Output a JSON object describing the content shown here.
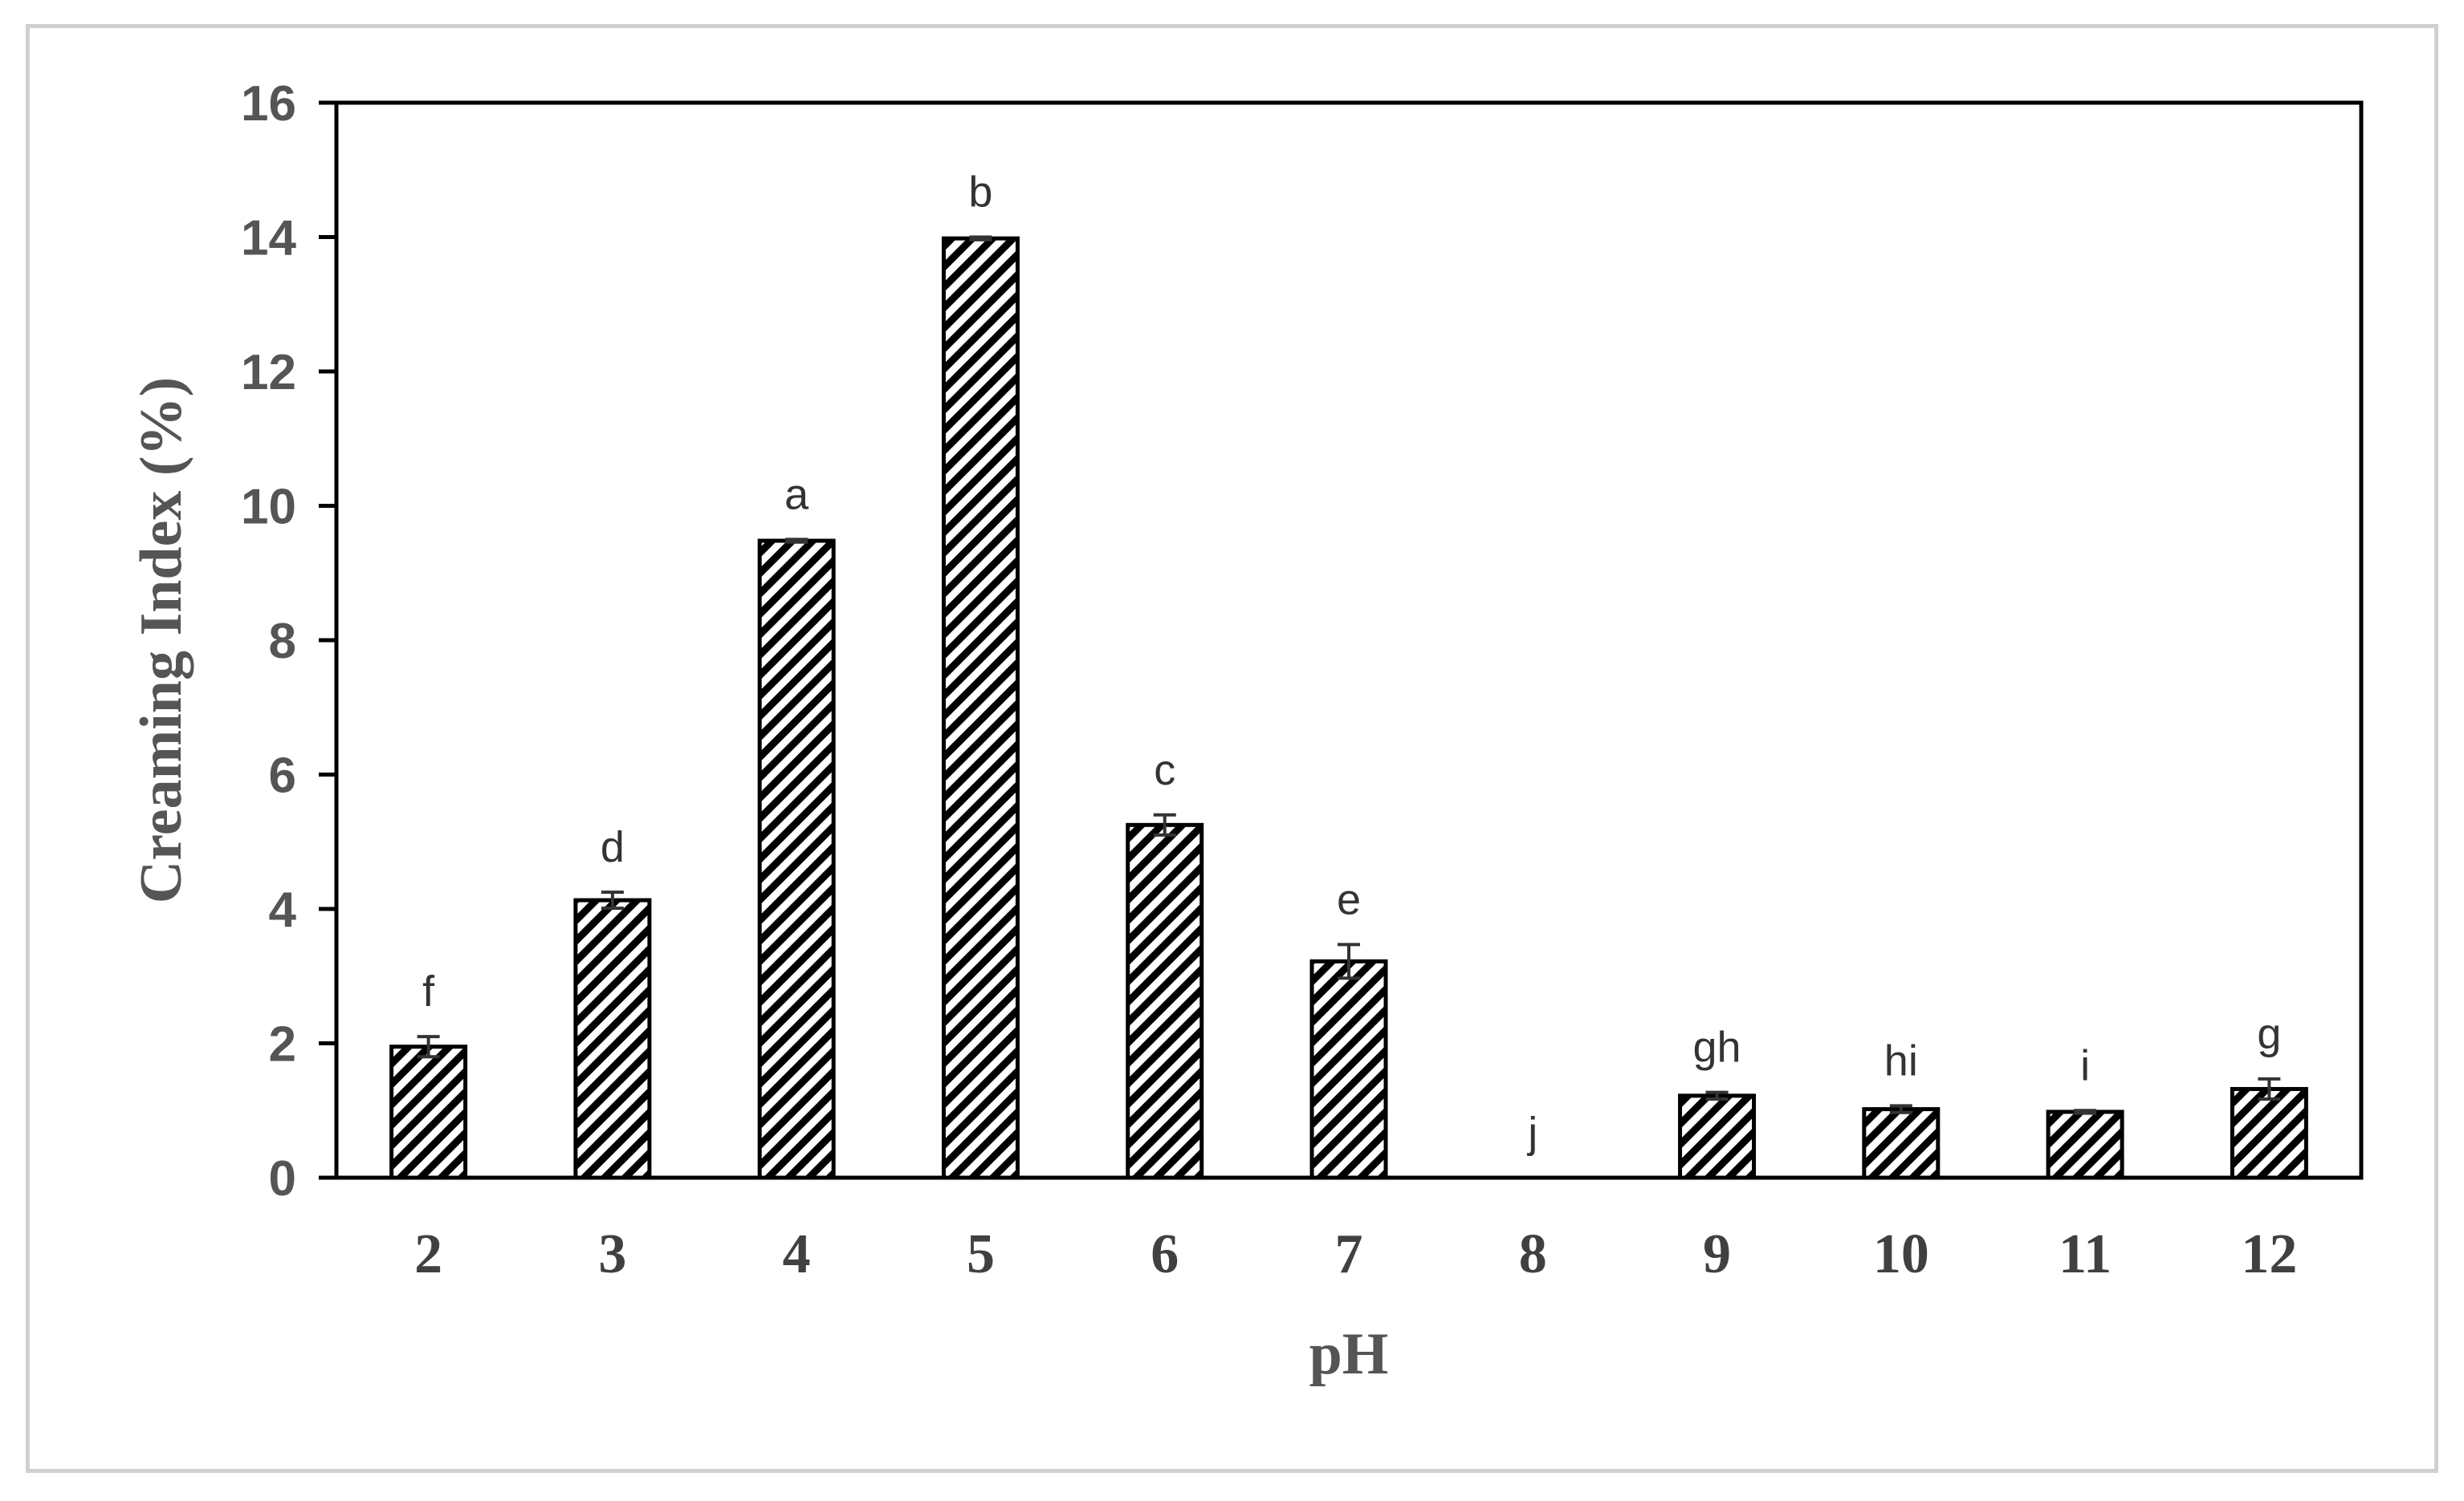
{
  "chart_data": {
    "type": "bar",
    "categories": [
      "2",
      "3",
      "4",
      "5",
      "6",
      "7",
      "8",
      "9",
      "10",
      "11",
      "12"
    ],
    "series": [
      {
        "values": [
          1.95,
          4.13,
          9.48,
          13.98,
          5.25,
          3.22,
          0.0,
          1.22,
          1.02,
          0.98,
          1.32
        ],
        "errors": [
          0.15,
          0.12,
          0.02,
          0.02,
          0.15,
          0.25,
          0.0,
          0.05,
          0.05,
          0.02,
          0.15
        ]
      }
    ],
    "annotations": [
      "f",
      "d",
      "a",
      "b",
      "c",
      "e",
      "j",
      "gh",
      "hi",
      "i",
      "g"
    ],
    "xlabel": "pH",
    "ylabel": "Creaming Index (%)",
    "ylim": [
      0,
      16
    ],
    "yticks": [
      0,
      2,
      4,
      6,
      8,
      10,
      12,
      14,
      16
    ],
    "grid": false,
    "legend": "none",
    "bar_fill": "diagonal-hatch",
    "colors": {
      "bar_stroke": "#000000",
      "hatch": "#000000",
      "tick_text": "#555555",
      "axis_title": "#555555",
      "frame": "#d0d0d0"
    }
  }
}
